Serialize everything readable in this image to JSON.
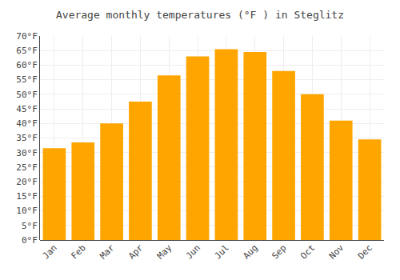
{
  "chart_data": {
    "type": "bar",
    "title": "Average monthly temperatures (°F ) in Steglitz",
    "categories": [
      "Jan",
      "Feb",
      "Mar",
      "Apr",
      "May",
      "Jun",
      "Jul",
      "Aug",
      "Sep",
      "Oct",
      "Nov",
      "Dec"
    ],
    "values": [
      31.5,
      33.5,
      40.0,
      47.5,
      56.5,
      63.0,
      65.5,
      64.5,
      58.0,
      50.0,
      41.0,
      34.5
    ],
    "color": "#FFA500",
    "ylim": [
      0,
      70
    ],
    "yticks": [
      {
        "value": 0,
        "label": "0°F"
      },
      {
        "value": 5,
        "label": "5°F"
      },
      {
        "value": 10,
        "label": "10°F"
      },
      {
        "value": 15,
        "label": "15°F"
      },
      {
        "value": 20,
        "label": "20°F"
      },
      {
        "value": 25,
        "label": "25°F"
      },
      {
        "value": 30,
        "label": "30°F"
      },
      {
        "value": 35,
        "label": "35°F"
      },
      {
        "value": 40,
        "label": "40°F"
      },
      {
        "value": 45,
        "label": "45°F"
      },
      {
        "value": 50,
        "label": "50°F"
      },
      {
        "value": 55,
        "label": "55°F"
      },
      {
        "value": 60,
        "label": "60°F"
      },
      {
        "value": 65,
        "label": "65°F"
      },
      {
        "value": 70,
        "label": "70°F"
      }
    ],
    "grid": true
  }
}
